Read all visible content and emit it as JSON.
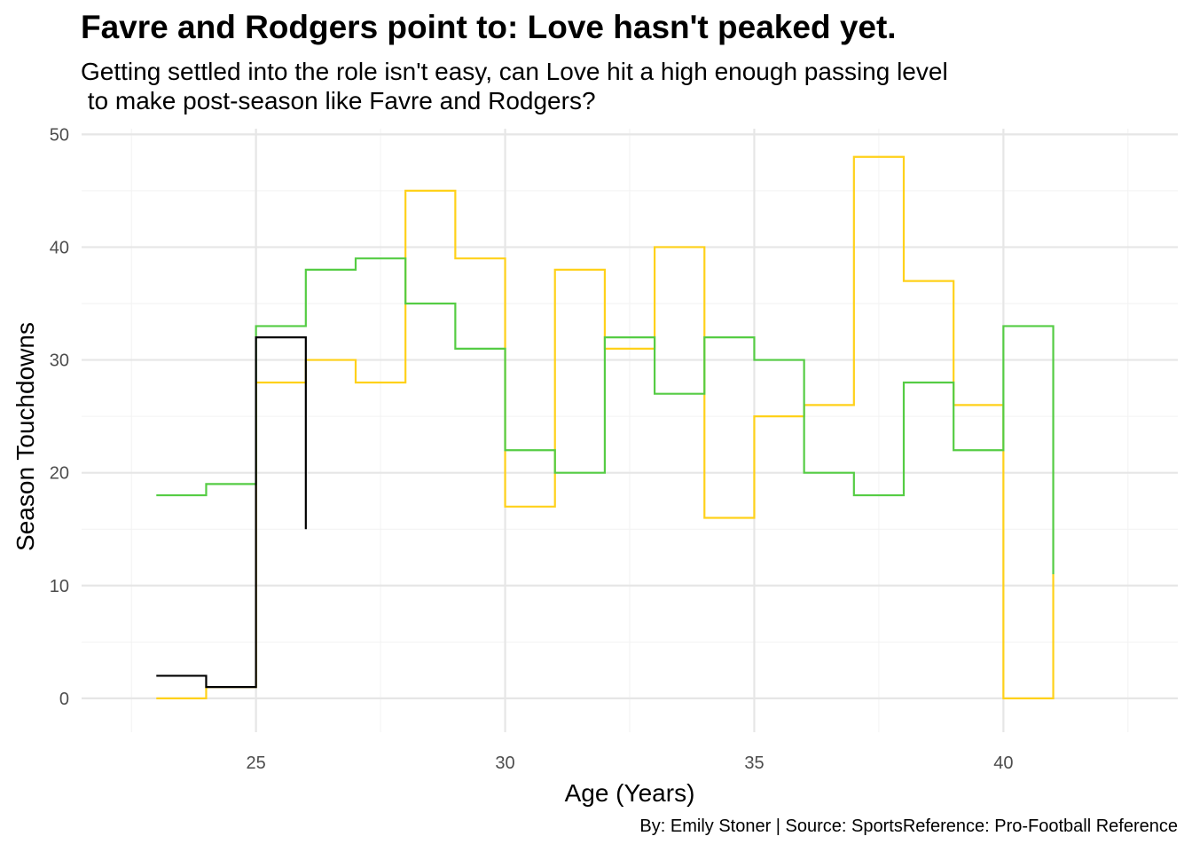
{
  "chart_data": {
    "type": "line",
    "step": true,
    "title": "Favre and Rodgers point to: Love hasn't peaked yet.",
    "subtitle": "Getting settled into the role isn't easy, can Love hit a high enough passing level\n to make post-season like Favre and Rodgers?",
    "caption": "By: Emily Stoner | Source: SportsReference: Pro-Football Reference",
    "xlabel": "Age (Years)",
    "ylabel": "Season Touchdowns",
    "xlim": [
      21.5,
      43.5
    ],
    "ylim": [
      -3,
      50.5
    ],
    "xticks": [
      25,
      30,
      35,
      40
    ],
    "yticks": [
      0,
      10,
      20,
      30,
      40,
      50
    ],
    "grid": true,
    "series": [
      {
        "color": "#FFD11A",
        "x": [
          23,
          24,
          25,
          26,
          27,
          28,
          29,
          30,
          31,
          32,
          33,
          34,
          35,
          36,
          37,
          38,
          39,
          40,
          41
        ],
        "y": [
          0,
          1,
          28,
          30,
          28,
          45,
          39,
          17,
          38,
          31,
          40,
          16,
          25,
          26,
          48,
          37,
          26,
          0,
          11
        ]
      },
      {
        "color": "#55CC44",
        "x": [
          23,
          24,
          25,
          26,
          27,
          28,
          29,
          30,
          31,
          32,
          33,
          34,
          35,
          36,
          37,
          38,
          39,
          40,
          41
        ],
        "y": [
          18,
          19,
          33,
          38,
          39,
          35,
          31,
          22,
          20,
          32,
          27,
          32,
          30,
          20,
          18,
          28,
          22,
          33,
          11
        ]
      },
      {
        "color": "#000000",
        "x": [
          23,
          24,
          25,
          26
        ],
        "y": [
          2,
          1,
          32,
          15
        ]
      }
    ]
  }
}
